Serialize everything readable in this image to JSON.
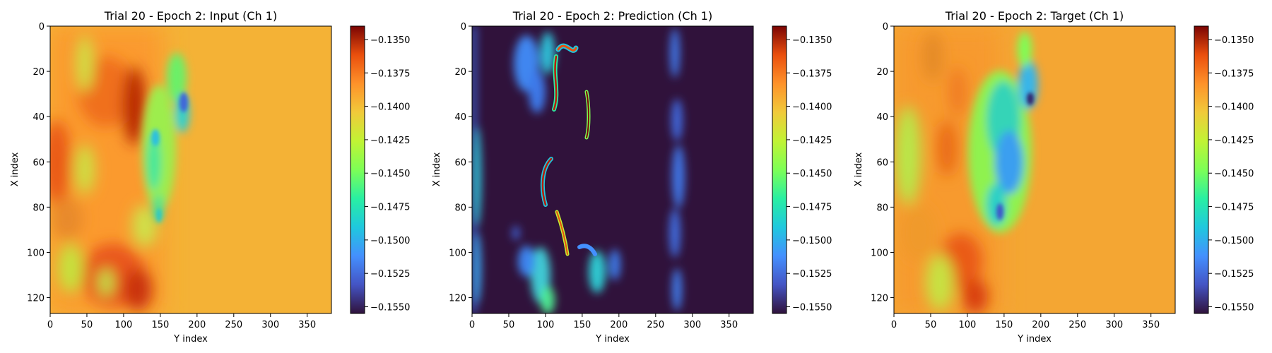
{
  "chart_data": [
    {
      "type": "heatmap",
      "title": "Trial 20 - Epoch 2: Input (Ch 1)",
      "xlabel": "Y index",
      "ylabel": "X index",
      "xlim": [
        0,
        383
      ],
      "ylim": [
        127,
        0
      ],
      "xticks": [
        "0",
        "50",
        "100",
        "150",
        "200",
        "250",
        "300",
        "350"
      ],
      "yticks": [
        "0",
        "20",
        "40",
        "60",
        "80",
        "100",
        "120"
      ],
      "colorbar": {
        "colormap": "turbo",
        "range": [
          -0.1555,
          -0.134
        ],
        "ticks": [
          "−0.1350",
          "−0.1375",
          "−0.1400",
          "−0.1425",
          "−0.1450",
          "−0.1475",
          "−0.1500",
          "−0.1525",
          "−0.1550"
        ]
      }
    },
    {
      "type": "heatmap",
      "title": "Trial 20 - Epoch 2: Prediction (Ch 1)",
      "xlabel": "Y index",
      "ylabel": "X index",
      "xlim": [
        0,
        383
      ],
      "ylim": [
        127,
        0
      ],
      "xticks": [
        "0",
        "50",
        "100",
        "150",
        "200",
        "250",
        "300",
        "350"
      ],
      "yticks": [
        "0",
        "20",
        "40",
        "60",
        "80",
        "100",
        "120"
      ],
      "colorbar": {
        "colormap": "turbo",
        "range": [
          -0.1555,
          -0.134
        ],
        "ticks": [
          "−0.1350",
          "−0.1375",
          "−0.1400",
          "−0.1425",
          "−0.1450",
          "−0.1475",
          "−0.1500",
          "−0.1525",
          "−0.1550"
        ]
      }
    },
    {
      "type": "heatmap",
      "title": "Trial 20 - Epoch 2: Target (Ch 1)",
      "xlabel": "Y index",
      "ylabel": "X index",
      "xlim": [
        0,
        383
      ],
      "ylim": [
        127,
        0
      ],
      "xticks": [
        "0",
        "50",
        "100",
        "150",
        "200",
        "250",
        "300",
        "350"
      ],
      "yticks": [
        "0",
        "20",
        "40",
        "60",
        "80",
        "100",
        "120"
      ],
      "colorbar": {
        "colormap": "turbo",
        "range": [
          -0.1555,
          -0.134
        ],
        "ticks": [
          "−0.1350",
          "−0.1375",
          "−0.1400",
          "−0.1425",
          "−0.1450",
          "−0.1475",
          "−0.1500",
          "−0.1525",
          "−0.1550"
        ]
      }
    }
  ]
}
